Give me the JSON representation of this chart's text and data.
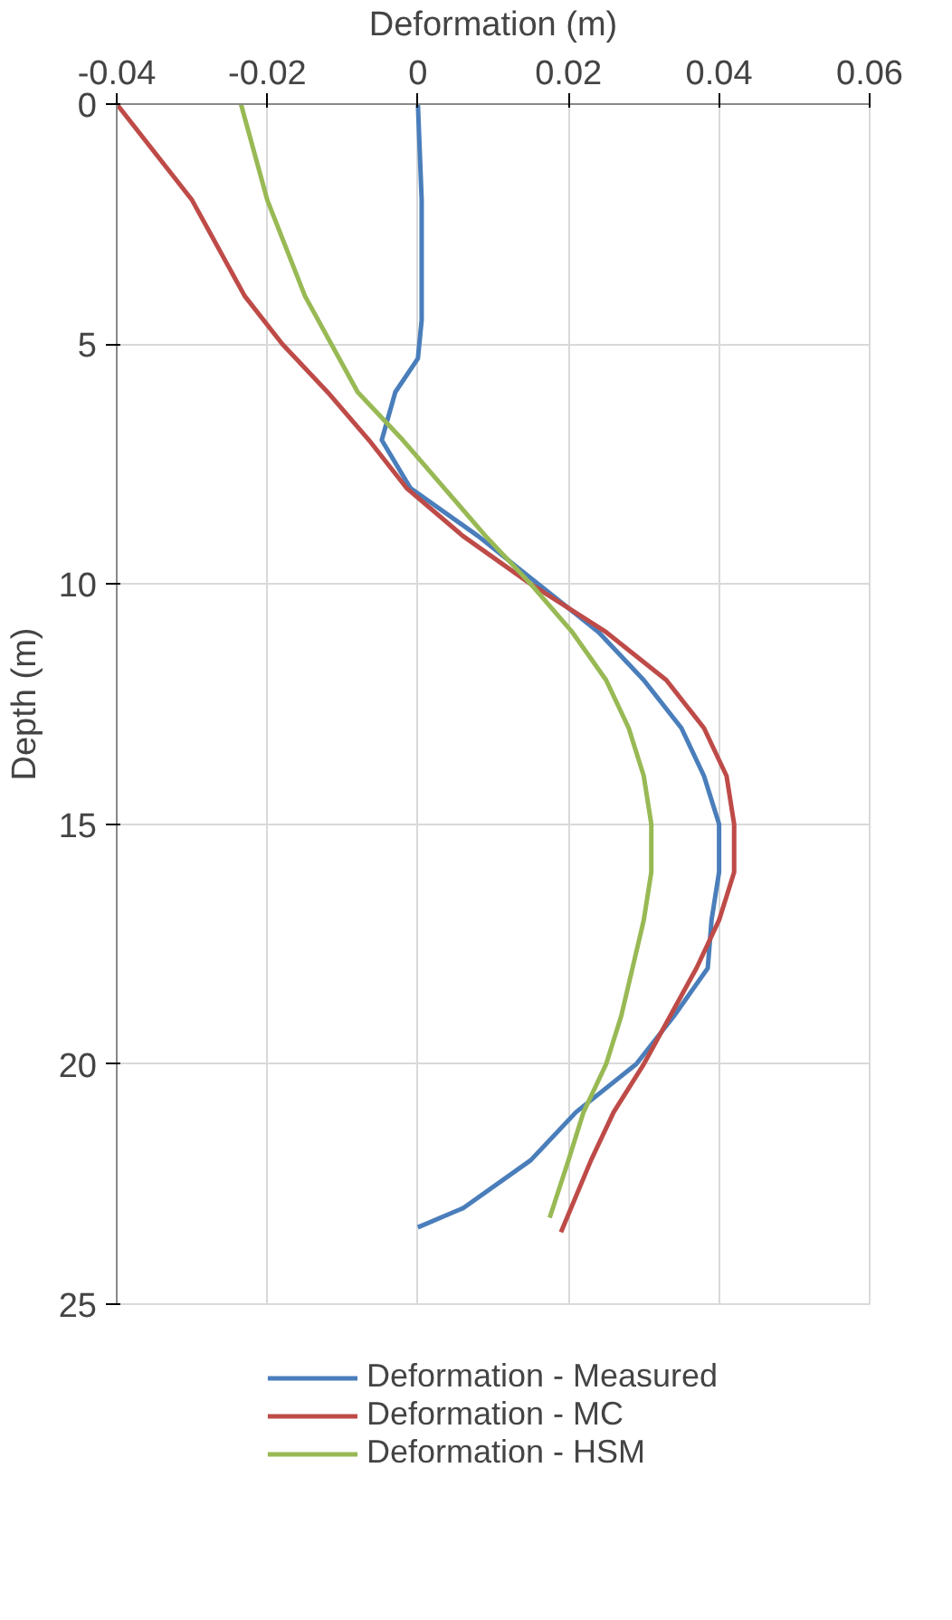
{
  "chart_data": {
    "type": "line",
    "xlabel": "Deformation (m)",
    "ylabel": "Depth (m)",
    "xlim": [
      -0.04,
      0.06
    ],
    "xticks": [
      -0.04,
      -0.02,
      0,
      0.02,
      0.04,
      0.06
    ],
    "ylim": [
      25,
      0
    ],
    "yticks": [
      0,
      5,
      10,
      15,
      20,
      25
    ],
    "grid": true,
    "legend": "bottom",
    "marker": "none",
    "line_style": "solid",
    "series": [
      {
        "name": "Deformation - Measured",
        "color": "#4a7ebb",
        "x": [
          0,
          0.0005,
          0.0005,
          0,
          -0.003,
          -0.0048,
          -0.001,
          0.008,
          0.016,
          0.024,
          0.03,
          0.035,
          0.038,
          0.04,
          0.04,
          0.039,
          0.0385,
          0.034,
          0.029,
          0.021,
          0.015,
          0.006,
          0
        ],
        "values": [
          0,
          2,
          4.5,
          5.3,
          6,
          7,
          8,
          9,
          10,
          11,
          12,
          13,
          14,
          15,
          16,
          17,
          18,
          19,
          20,
          21,
          22,
          23,
          23.4
        ]
      },
      {
        "name": "Deformation - MC",
        "color": "#be4b48",
        "x": [
          -0.04,
          -0.03,
          -0.023,
          -0.018,
          -0.012,
          -0.0065,
          -0.0015,
          0.006,
          0.015,
          0.025,
          0.033,
          0.038,
          0.041,
          0.042,
          0.042,
          0.04,
          0.037,
          0.0335,
          0.03,
          0.026,
          0.023,
          0.019
        ],
        "values": [
          0,
          2,
          4,
          5,
          6,
          7,
          8,
          9,
          10,
          11,
          12,
          13,
          14,
          15,
          16,
          17,
          18,
          19,
          20,
          21,
          22,
          23.5
        ]
      },
      {
        "name": "Deformation - HSM",
        "color": "#98b954",
        "x": [
          -0.0235,
          -0.02,
          -0.015,
          -0.008,
          -0.002,
          0.0035,
          0.009,
          0.015,
          0.0205,
          0.025,
          0.028,
          0.03,
          0.031,
          0.031,
          0.03,
          0.0285,
          0.027,
          0.025,
          0.022,
          0.02,
          0.0175
        ],
        "values": [
          0,
          2,
          4,
          6,
          7,
          8,
          9,
          10,
          11,
          12,
          13,
          14,
          15,
          16,
          17,
          18,
          19,
          20,
          21,
          22,
          23.2
        ]
      }
    ]
  }
}
